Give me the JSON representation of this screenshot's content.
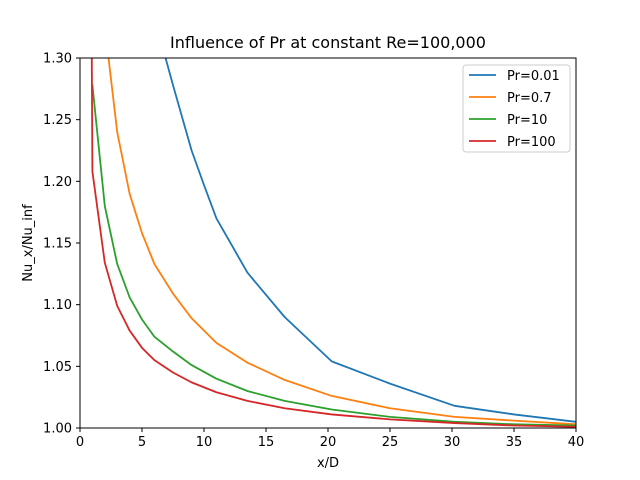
{
  "chart_data": {
    "type": "line",
    "title": "Influence of Pr at constant Re=100,000",
    "xlabel": "x/D",
    "ylabel": "Nu_x/Nu_inf",
    "xlim": [
      0,
      40
    ],
    "ylim": [
      1.0,
      1.3
    ],
    "xticks": [
      0,
      5,
      10,
      15,
      20,
      25,
      30,
      35,
      40
    ],
    "xtick_labels": [
      "0",
      "5",
      "10",
      "15",
      "20",
      "25",
      "30",
      "35",
      "40"
    ],
    "yticks": [
      1.0,
      1.05,
      1.1,
      1.15,
      1.2,
      1.25,
      1.3
    ],
    "ytick_labels": [
      "1.00",
      "1.05",
      "1.10",
      "1.15",
      "1.20",
      "1.25",
      "1.30"
    ],
    "grid": false,
    "legend": "top-right",
    "series": [
      {
        "name": "Pr=0.01",
        "color": "#1f77b4",
        "x": [
          6.9,
          7.5,
          9,
          10,
          11,
          13.5,
          16.5,
          20.3,
          25,
          30.2,
          35,
          40
        ],
        "y": [
          1.3,
          1.278,
          1.225,
          1.197,
          1.17,
          1.126,
          1.09,
          1.054,
          1.036,
          1.018,
          1.011,
          1.005
        ]
      },
      {
        "name": "Pr=0.7",
        "color": "#ff7f0e",
        "x": [
          2.3,
          3,
          4,
          5,
          6,
          7.5,
          9,
          11,
          13.5,
          16.5,
          20.3,
          25,
          30.2,
          35,
          40
        ],
        "y": [
          1.3,
          1.24,
          1.19,
          1.158,
          1.133,
          1.109,
          1.089,
          1.069,
          1.053,
          1.039,
          1.026,
          1.016,
          1.009,
          1.006,
          1.003
        ]
      },
      {
        "name": "Pr=10",
        "color": "#2ca02c",
        "x": [
          1,
          2,
          3,
          4,
          5,
          6,
          7.5,
          9,
          11,
          13.5,
          16.5,
          20.3,
          25,
          30.2,
          35,
          40
        ],
        "y": [
          1.278,
          1.18,
          1.133,
          1.106,
          1.088,
          1.074,
          1.062,
          1.051,
          1.04,
          1.03,
          1.022,
          1.015,
          1.009,
          1.005,
          1.003,
          1.002
        ]
      },
      {
        "name": "Pr=100",
        "color": "#d62728",
        "x": [
          0.95,
          1,
          2,
          3,
          4,
          5,
          6,
          7.5,
          9,
          11,
          13.5,
          16.5,
          20.3,
          25,
          30.2,
          35,
          40
        ],
        "y": [
          1.3,
          1.208,
          1.134,
          1.099,
          1.079,
          1.065,
          1.055,
          1.045,
          1.037,
          1.029,
          1.022,
          1.016,
          1.011,
          1.007,
          1.004,
          1.002,
          1.001
        ]
      }
    ]
  }
}
